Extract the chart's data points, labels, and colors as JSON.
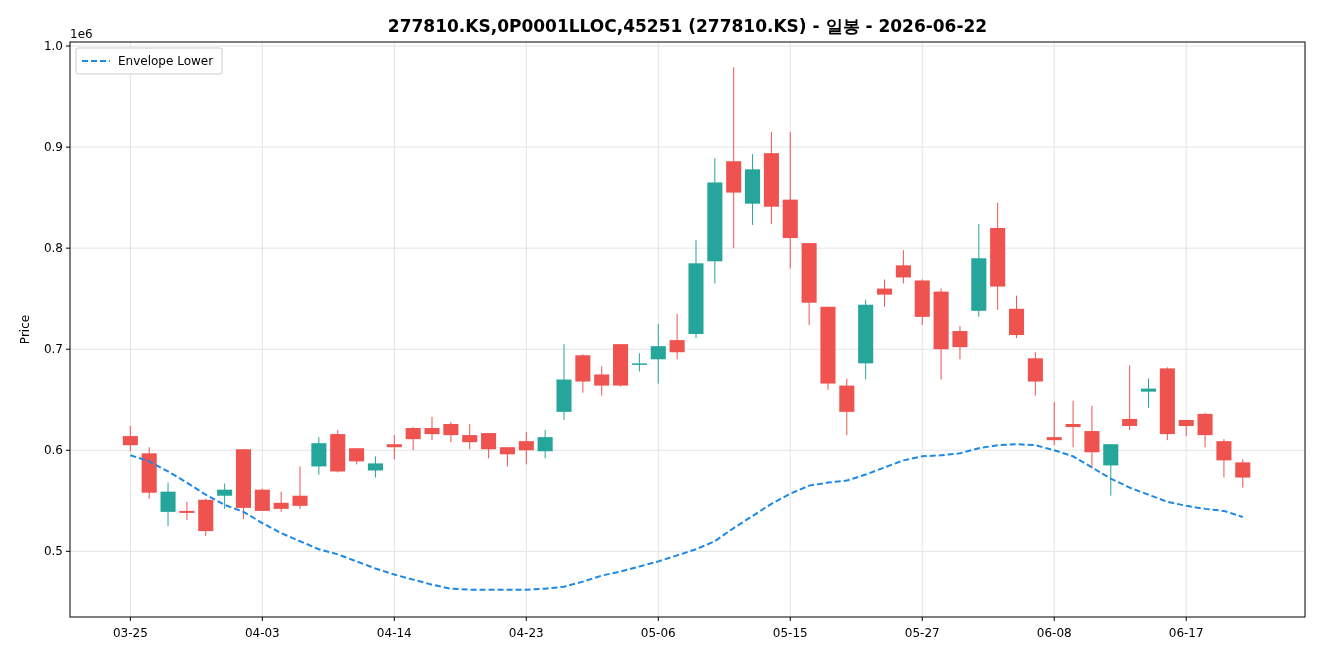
{
  "chart_data": {
    "type": "candlestick",
    "title": "277810.KS,0P0001LLOC,45251 (277810.KS) - 일봉 - 2026-06-22",
    "ylabel": "Price",
    "annotations": [
      "1e6"
    ],
    "categories": [
      "03-25",
      null,
      null,
      null,
      null,
      null,
      null,
      "04-03",
      null,
      null,
      null,
      null,
      null,
      null,
      "04-14",
      null,
      null,
      null,
      null,
      null,
      null,
      "04-23",
      null,
      null,
      null,
      null,
      null,
      null,
      "05-06",
      null,
      null,
      null,
      null,
      null,
      null,
      "05-15",
      null,
      null,
      null,
      null,
      null,
      null,
      "05-27",
      null,
      null,
      null,
      null,
      null,
      null,
      "06-08",
      null,
      null,
      null,
      null,
      null,
      null,
      "06-17",
      null,
      null,
      null
    ],
    "ohlc": [
      [
        0.614,
        0.624,
        0.599,
        0.605
      ],
      [
        0.597,
        0.603,
        0.552,
        0.558
      ],
      [
        0.539,
        0.568,
        0.525,
        0.559
      ],
      [
        0.54,
        0.549,
        0.531,
        0.538
      ],
      [
        0.551,
        0.552,
        0.515,
        0.52
      ],
      [
        0.555,
        0.567,
        0.542,
        0.561
      ],
      [
        0.601,
        0.601,
        0.532,
        0.543
      ],
      [
        0.561,
        0.562,
        0.54,
        0.54
      ],
      [
        0.548,
        0.559,
        0.539,
        0.542
      ],
      [
        0.555,
        0.584,
        0.542,
        0.545
      ],
      [
        0.584,
        0.613,
        0.576,
        0.607
      ],
      [
        0.616,
        0.62,
        0.578,
        0.579
      ],
      [
        0.602,
        0.602,
        0.586,
        0.589
      ],
      [
        0.58,
        0.594,
        0.573,
        0.587
      ],
      [
        0.606,
        0.615,
        0.591,
        0.603
      ],
      [
        0.622,
        0.623,
        0.6,
        0.611
      ],
      [
        0.622,
        0.633,
        0.61,
        0.616
      ],
      [
        0.626,
        0.628,
        0.608,
        0.615
      ],
      [
        0.615,
        0.626,
        0.601,
        0.608
      ],
      [
        0.617,
        0.617,
        0.592,
        0.601
      ],
      [
        0.603,
        0.603,
        0.584,
        0.596
      ],
      [
        0.609,
        0.618,
        0.586,
        0.6
      ],
      [
        0.599,
        0.62,
        0.592,
        0.613
      ],
      [
        0.638,
        0.705,
        0.63,
        0.67
      ],
      [
        0.694,
        0.695,
        0.657,
        0.668
      ],
      [
        0.675,
        0.683,
        0.654,
        0.664
      ],
      [
        0.705,
        0.705,
        0.663,
        0.664
      ],
      [
        0.685,
        0.696,
        0.678,
        0.686
      ],
      [
        0.69,
        0.725,
        0.666,
        0.703
      ],
      [
        0.709,
        0.735,
        0.69,
        0.697
      ],
      [
        0.715,
        0.808,
        0.711,
        0.785
      ],
      [
        0.787,
        0.889,
        0.765,
        0.865
      ],
      [
        0.886,
        0.979,
        0.8,
        0.855
      ],
      [
        0.844,
        0.893,
        0.823,
        0.878
      ],
      [
        0.894,
        0.915,
        0.824,
        0.841
      ],
      [
        0.848,
        0.915,
        0.78,
        0.81
      ],
      [
        0.805,
        0.805,
        0.724,
        0.746
      ],
      [
        0.742,
        0.742,
        0.66,
        0.666
      ],
      [
        0.664,
        0.671,
        0.615,
        0.638
      ],
      [
        0.686,
        0.749,
        0.67,
        0.744
      ],
      [
        0.76,
        0.769,
        0.742,
        0.754
      ],
      [
        0.783,
        0.798,
        0.765,
        0.771
      ],
      [
        0.768,
        0.769,
        0.724,
        0.732
      ],
      [
        0.757,
        0.76,
        0.67,
        0.7
      ],
      [
        0.718,
        0.723,
        0.69,
        0.702
      ],
      [
        0.738,
        0.824,
        0.732,
        0.79
      ],
      [
        0.82,
        0.845,
        0.739,
        0.762
      ],
      [
        0.74,
        0.753,
        0.711,
        0.714
      ],
      [
        0.691,
        0.697,
        0.654,
        0.668
      ],
      [
        0.613,
        0.648,
        0.605,
        0.61
      ],
      [
        0.626,
        0.649,
        0.603,
        0.623
      ],
      [
        0.619,
        0.644,
        0.582,
        0.598
      ],
      [
        0.585,
        0.606,
        0.555,
        0.606
      ],
      [
        0.631,
        0.684,
        0.62,
        0.624
      ],
      [
        0.658,
        0.671,
        0.642,
        0.661
      ],
      [
        0.681,
        0.682,
        0.61,
        0.616
      ],
      [
        0.63,
        0.63,
        0.614,
        0.624
      ],
      [
        0.636,
        0.637,
        0.603,
        0.615
      ],
      [
        0.609,
        0.611,
        0.573,
        0.59
      ],
      [
        0.588,
        0.591,
        0.563,
        0.573
      ]
    ],
    "colors": [
      "#ef5350",
      "#ef5350",
      "#26a69a",
      "#ef5350",
      "#ef5350",
      "#26a69a",
      "#ef5350",
      "#ef5350",
      "#ef5350",
      "#ef5350",
      "#26a69a",
      "#ef5350",
      "#ef5350",
      "#26a69a",
      "#ef5350",
      "#ef5350",
      "#ef5350",
      "#ef5350",
      "#ef5350",
      "#ef5350",
      "#ef5350",
      "#ef5350",
      "#26a69a",
      "#26a69a",
      "#ef5350",
      "#ef5350",
      "#ef5350",
      "#26a69a",
      "#26a69a",
      "#ef5350",
      "#26a69a",
      "#26a69a",
      "#ef5350",
      "#26a69a",
      "#ef5350",
      "#ef5350",
      "#ef5350",
      "#ef5350",
      "#ef5350",
      "#26a69a",
      "#ef5350",
      "#ef5350",
      "#ef5350",
      "#ef5350",
      "#ef5350",
      "#26a69a",
      "#ef5350",
      "#ef5350",
      "#ef5350",
      "#ef5350",
      "#ef5350",
      "#ef5350",
      "#26a69a",
      "#ef5350",
      "#26a69a",
      "#ef5350",
      "#ef5350",
      "#ef5350",
      "#ef5350",
      "#ef5350"
    ],
    "series": [
      {
        "name": "Envelope Lower",
        "type": "line",
        "color": "#1e88e5",
        "line_style": "dashed",
        "values": [
          0.595,
          0.589,
          0.579,
          0.568,
          0.556,
          0.546,
          0.539,
          0.528,
          0.518,
          0.51,
          0.502,
          0.497,
          0.49,
          0.483,
          0.477,
          0.472,
          0.467,
          0.463,
          0.462,
          0.462,
          0.462,
          0.462,
          0.463,
          0.465,
          0.47,
          0.476,
          0.48,
          0.485,
          0.49,
          0.496,
          0.502,
          0.51,
          0.523,
          0.535,
          0.547,
          0.557,
          0.565,
          0.568,
          0.57,
          0.576,
          0.583,
          0.59,
          0.594,
          0.595,
          0.597,
          0.602,
          0.605,
          0.606,
          0.605,
          0.6,
          0.594,
          0.583,
          0.572,
          0.563,
          0.556,
          0.549,
          0.545,
          0.542,
          0.54,
          0.534
        ]
      }
    ],
    "ylim": [
      0.435,
      1.004
    ],
    "yticks": [
      0.5,
      0.6,
      0.7,
      0.8,
      0.9,
      {
        "value": 1,
        "label": "1.0"
      }
    ],
    "grid": true,
    "legend": "top left"
  }
}
